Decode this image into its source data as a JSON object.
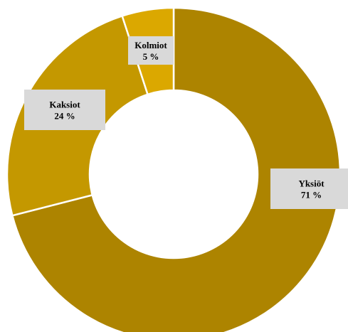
{
  "chart_data": {
    "type": "pie",
    "variant": "donut",
    "title": "",
    "categories": [
      "Yksiöt",
      "Kaksiot",
      "Kolmiot"
    ],
    "values": [
      71,
      24,
      5
    ],
    "value_labels": [
      "71 %",
      "24 %",
      "5 %"
    ],
    "series": [
      {
        "name": "",
        "values": [
          71,
          24,
          5
        ]
      }
    ],
    "colors": [
      "#ad8400",
      "#c49800",
      "#dba800"
    ],
    "legend": "none",
    "label_box_color": "#d9d9d9",
    "slice_border_color": "#ffffff"
  }
}
